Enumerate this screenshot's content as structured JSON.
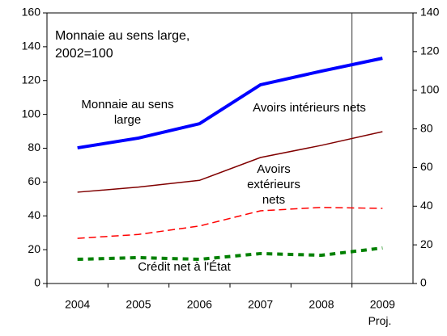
{
  "chart_data": {
    "type": "line",
    "title": "Monnaie au sens large, 2002=100",
    "categories": [
      "2004",
      "2005",
      "2006",
      "2007",
      "2008",
      "2009"
    ],
    "annotation": "Proj.",
    "series": [
      {
        "name": "Monnaie au sens large",
        "color": "#0000ff",
        "style": "thick",
        "values": [
          80.2,
          86,
          94.5,
          117.5,
          125.6,
          133.2
        ]
      },
      {
        "name": "Avoirs intérieurs nets",
        "color": "#800000",
        "style": "solid",
        "values": [
          54,
          57,
          61,
          74.5,
          81.7,
          89.8
        ]
      },
      {
        "name": "Avoirs extérieurs nets",
        "color": "#ff0000",
        "style": "dashed",
        "values": [
          26.7,
          29,
          34,
          43,
          45,
          44.4
        ]
      },
      {
        "name": "Crédit net à l'État",
        "color": "#008000",
        "style": "thick-dashed",
        "values": [
          14.3,
          15.3,
          14.3,
          17.7,
          16.7,
          21
        ]
      }
    ],
    "ylim": [
      0,
      160
    ],
    "yticks": [
      0,
      20,
      40,
      60,
      80,
      100,
      120,
      140,
      160
    ],
    "y2lim": [
      0,
      140
    ],
    "y2ticks": [
      0,
      20,
      40,
      60,
      80,
      100,
      120,
      140
    ]
  }
}
